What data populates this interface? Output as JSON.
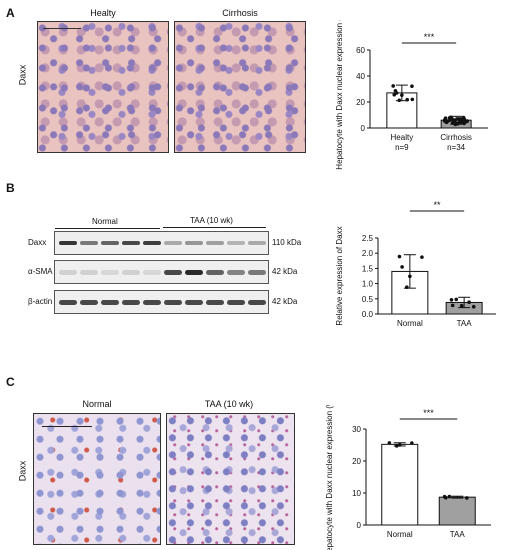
{
  "panel_A": {
    "label": "A",
    "row_label": "Daxx",
    "image_titles": [
      "Healty",
      "Cirrhosis"
    ],
    "chart_data": {
      "type": "bar",
      "ylabel": "Hepatocyte with Daxx nuclear expression (%)",
      "ylim": [
        0,
        60
      ],
      "yticks": [
        "0",
        "20",
        "40",
        "60"
      ],
      "categories": [
        "Healty",
        "Cirrhosis"
      ],
      "category_sub": [
        "n=9",
        "n=34"
      ],
      "values": [
        27,
        6
      ],
      "errors": [
        6,
        3
      ],
      "significance": "***"
    }
  },
  "panel_B": {
    "label": "B",
    "group_labels": [
      "Normal",
      "TAA (10 wk)"
    ],
    "row_labels": [
      "Daxx",
      "α-SMA",
      "β-actin"
    ],
    "kda_labels": [
      "110 kDa",
      "42 kDa",
      "42 kDa"
    ],
    "chart_data": {
      "type": "bar",
      "ylabel": "Relative expression of Daxx",
      "ylim": [
        0,
        2.5
      ],
      "yticks": [
        "0.0",
        "0.5",
        "1.0",
        "1.5",
        "2.0",
        "2.5"
      ],
      "categories": [
        "Normal",
        "TAA"
      ],
      "values": [
        1.4,
        0.38
      ],
      "errors": [
        0.55,
        0.17
      ],
      "significance": "**"
    }
  },
  "panel_C": {
    "label": "C",
    "row_label": "Daxx",
    "image_titles": [
      "Normal",
      "TAA (10 wk)"
    ],
    "chart_data": {
      "type": "bar",
      "ylabel": "Hepatocyte with Daxx nuclear expression (%)",
      "ylim": [
        0,
        30
      ],
      "yticks": [
        "0",
        "10",
        "20",
        "30"
      ],
      "categories": [
        "Normal",
        "TAA"
      ],
      "values": [
        25.2,
        8.7
      ],
      "errors": [
        0.5,
        0.3
      ],
      "significance": "***"
    }
  },
  "colors": {
    "bar_normal": "#ffffff",
    "bar_disease": "#a0a0a0",
    "band": "#2a2a2a"
  }
}
